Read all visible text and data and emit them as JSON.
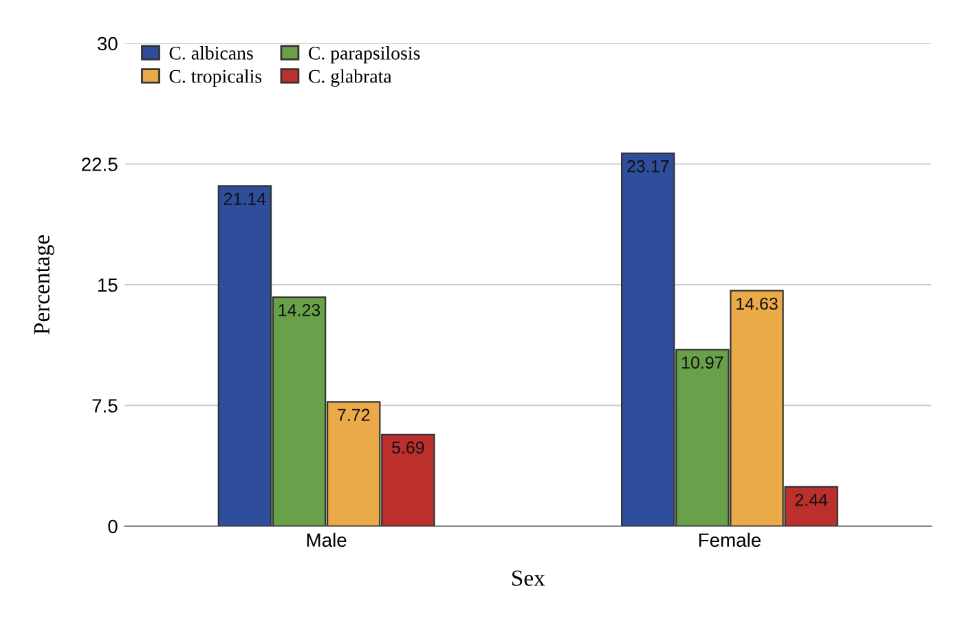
{
  "chart_data": {
    "type": "bar",
    "xlabel": "Sex",
    "ylabel": "Percentage",
    "categories": [
      "Male",
      "Female"
    ],
    "series": [
      {
        "name": "C. albicans",
        "color": "#2e4d9b",
        "values": [
          21.14,
          23.17
        ]
      },
      {
        "name": "C. parapsilosis",
        "color": "#69a04a",
        "values": [
          14.23,
          10.97
        ]
      },
      {
        "name": "C. tropicalis",
        "color": "#eaaa48",
        "values": [
          7.72,
          14.63
        ]
      },
      {
        "name": "C. glabrata",
        "color": "#bb2f2c",
        "values": [
          5.69,
          2.44
        ]
      }
    ],
    "ylim": [
      0,
      30
    ],
    "yticks": [
      0,
      7.5,
      15,
      22.5,
      30
    ],
    "grid": "y",
    "legend": "top left",
    "data_labels": true
  }
}
